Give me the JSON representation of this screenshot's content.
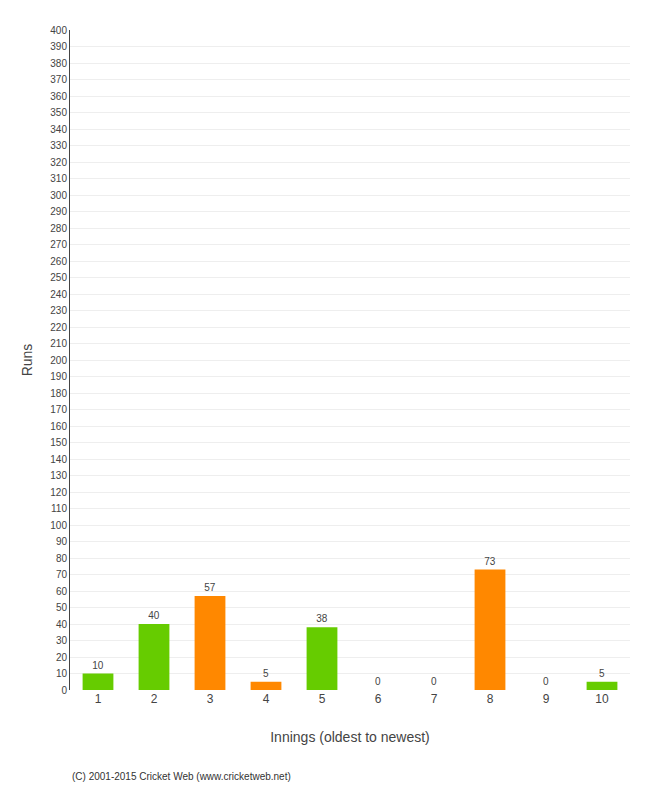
{
  "chart_data": {
    "type": "bar",
    "xlabel": "Innings (oldest to newest)",
    "ylabel": "Runs",
    "categories": [
      "1",
      "2",
      "3",
      "4",
      "5",
      "6",
      "7",
      "8",
      "9",
      "10"
    ],
    "values": [
      10,
      40,
      57,
      5,
      38,
      0,
      0,
      73,
      0,
      5
    ],
    "colors": [
      "#66cc00",
      "#66cc00",
      "#ff8800",
      "#ff8800",
      "#66cc00",
      "#66cc00",
      "#66cc00",
      "#ff8800",
      "#66cc00",
      "#66cc00"
    ],
    "ylim": [
      0,
      400
    ],
    "yticks": [
      0,
      10,
      20,
      30,
      40,
      50,
      60,
      70,
      80,
      90,
      100,
      110,
      120,
      130,
      140,
      150,
      160,
      170,
      180,
      190,
      200,
      210,
      220,
      230,
      240,
      250,
      260,
      270,
      280,
      290,
      300,
      310,
      320,
      330,
      340,
      350,
      360,
      370,
      380,
      390,
      400
    ],
    "grid": true,
    "data_labels": true,
    "annotations": [
      "(C) 2001-2015 Cricket Web (www.cricketweb.net)"
    ]
  }
}
